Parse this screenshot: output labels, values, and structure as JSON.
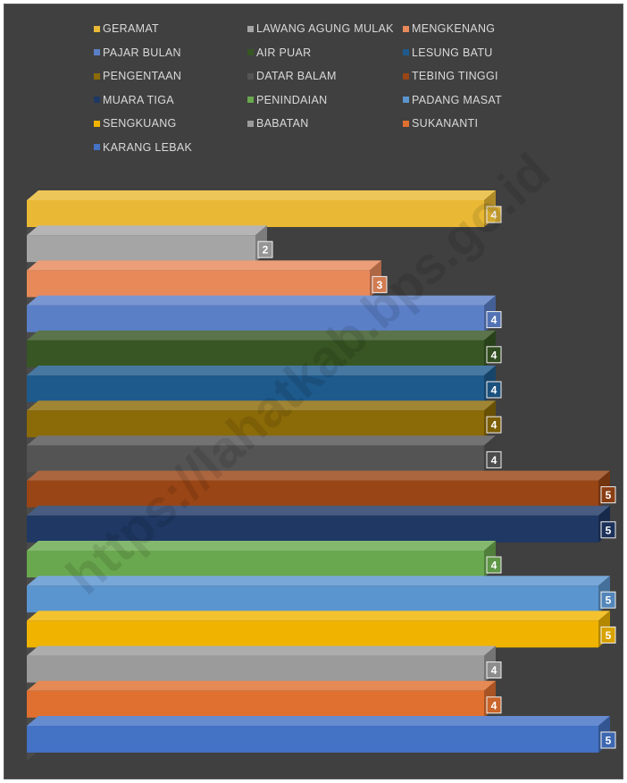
{
  "chart_data": {
    "type": "bar",
    "orientation": "horizontal",
    "style": "3d",
    "categories": [
      "GERAMAT",
      "LAWANG AGUNG MULAK",
      "MENGKENANG",
      "PAJAR BULAN",
      "AIR PUAR",
      "LESUNG BATU",
      "PENGENTAAN",
      "DATAR BALAM",
      "TEBING TINGGI",
      "MUARA TIGA",
      "PENINDAIAN",
      "PADANG MASAT",
      "SENGKUANG",
      "BABATAN",
      "SUKANANTI",
      "KARANG LEBAK"
    ],
    "values": [
      4,
      2,
      3,
      4,
      4,
      4,
      4,
      4,
      5,
      5,
      4,
      5,
      5,
      4,
      4,
      5
    ],
    "colors": [
      "#e9b935",
      "#a5a5a5",
      "#e8895a",
      "#5b7fc7",
      "#375623",
      "#1f5a8c",
      "#8b6a08",
      "#545454",
      "#994515",
      "#1f3864",
      "#6aa84f",
      "#5b95cf",
      "#f0b400",
      "#9b9b9b",
      "#e07030",
      "#4472c4"
    ],
    "legend_position": "top",
    "grid": false,
    "xlim": [
      0,
      5
    ]
  },
  "watermark": "https://lahatkab.bps.go.id"
}
